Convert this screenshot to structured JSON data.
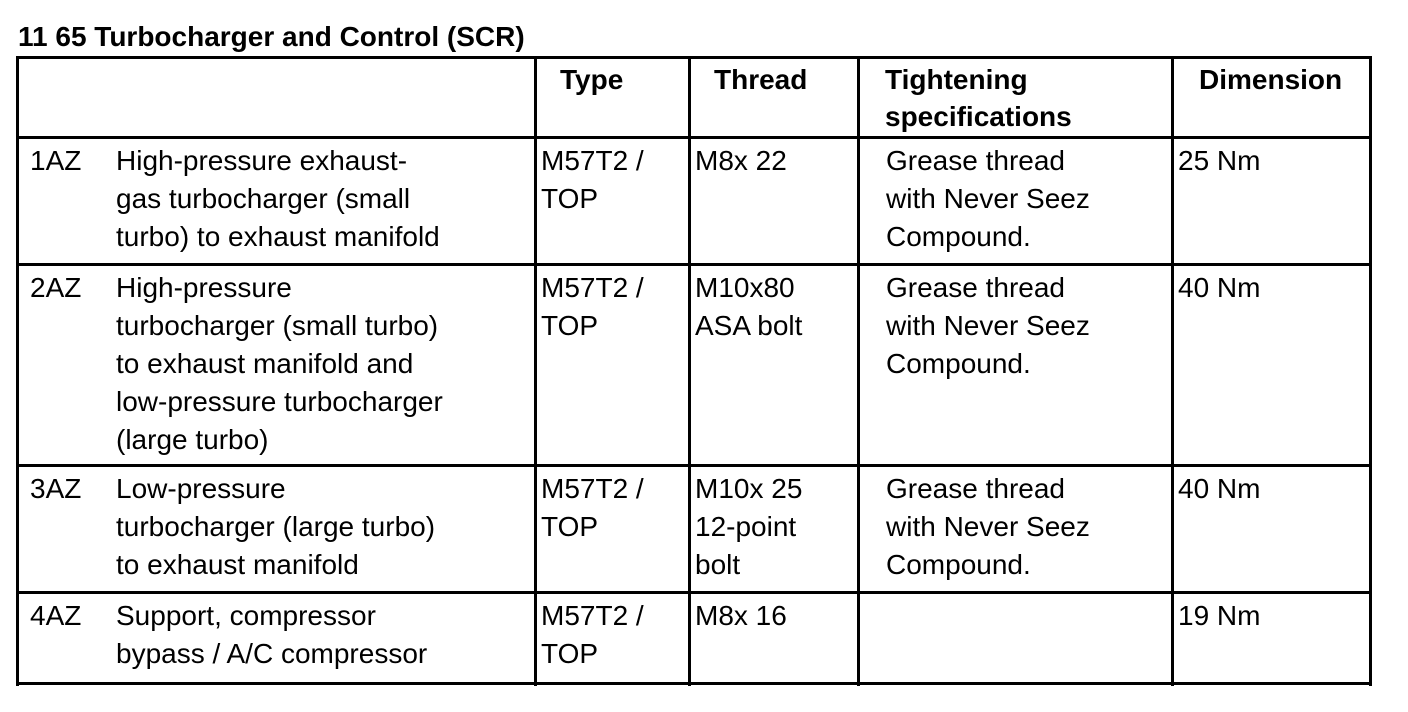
{
  "title": "11 65 Turbocharger and Control (SCR)",
  "table": {
    "headers": {
      "blank": "",
      "type": "Type",
      "thread": "Thread",
      "tightening": "Tightening\nspecifications",
      "dimension": "Dimension"
    },
    "rows": [
      {
        "id": "1AZ",
        "description": "High-pressure exhaust-\ngas turbocharger (small\nturbo) to exhaust manifold",
        "type": "M57T2 /\nTOP",
        "thread": "M8x 22",
        "tightening": "Grease thread\nwith Never Seez\nCompound.",
        "dimension": "25 Nm"
      },
      {
        "id": "2AZ",
        "description": "High-pressure\nturbocharger (small turbo)\nto exhaust manifold and\nlow-pressure turbocharger\n(large turbo)",
        "type": "M57T2 /\nTOP",
        "thread": "M10x80\nASA bolt",
        "tightening": "Grease thread\nwith Never Seez\nCompound.",
        "dimension": "40 Nm"
      },
      {
        "id": "3AZ",
        "description": "Low-pressure\nturbocharger (large turbo)\nto exhaust manifold",
        "type": "M57T2 /\nTOP",
        "thread": "M10x 25\n12-point\nbolt",
        "tightening": "Grease thread\nwith Never Seez\nCompound.",
        "dimension": "40 Nm"
      },
      {
        "id": "4AZ",
        "description": "Support, compressor\nbypass / A/C compressor",
        "type": "M57T2 /\nTOP",
        "thread": "M8x 16",
        "tightening": "",
        "dimension": "19 Nm"
      }
    ]
  }
}
